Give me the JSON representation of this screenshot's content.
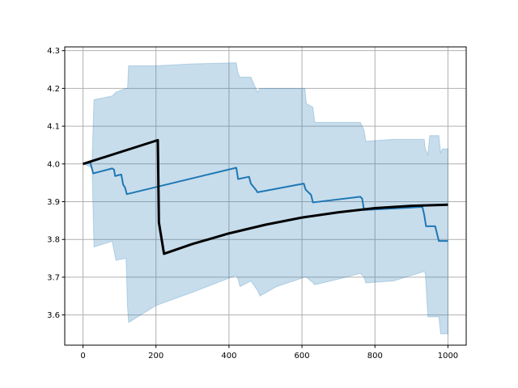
{
  "chart_data": {
    "type": "line",
    "title": "",
    "xlabel": "",
    "ylabel": "",
    "xlim": [
      -50,
      1050
    ],
    "ylim": [
      3.52,
      4.31
    ],
    "grid": true,
    "xticks": [
      0,
      200,
      400,
      600,
      800,
      1000
    ],
    "yticks": [
      3.6,
      3.7,
      3.8,
      3.9,
      4.0,
      4.1,
      4.2,
      4.3
    ],
    "colors": {
      "band": "#1f77b4",
      "mean": "#1f77b4",
      "reference": "#000000",
      "grid": "#b0b0b0"
    },
    "series": [
      {
        "kind": "band",
        "upper": [
          [
            0,
            4.0
          ],
          [
            25,
            4.01
          ],
          [
            30,
            4.17
          ],
          [
            80,
            4.18
          ],
          [
            90,
            4.19
          ],
          [
            118,
            4.2
          ],
          [
            122,
            4.2
          ],
          [
            125,
            4.26
          ],
          [
            200,
            4.26
          ],
          [
            300,
            4.265
          ],
          [
            420,
            4.268
          ],
          [
            425,
            4.24
          ],
          [
            430,
            4.23
          ],
          [
            460,
            4.23
          ],
          [
            478,
            4.19
          ],
          [
            485,
            4.2
          ],
          [
            530,
            4.2
          ],
          [
            608,
            4.2
          ],
          [
            612,
            4.16
          ],
          [
            630,
            4.15
          ],
          [
            635,
            4.11
          ],
          [
            700,
            4.11
          ],
          [
            760,
            4.11
          ],
          [
            770,
            4.09
          ],
          [
            775,
            4.06
          ],
          [
            850,
            4.065
          ],
          [
            935,
            4.065
          ],
          [
            938,
            4.04
          ],
          [
            945,
            4.025
          ],
          [
            950,
            4.075
          ],
          [
            975,
            4.075
          ],
          [
            980,
            4.03
          ],
          [
            985,
            4.04
          ],
          [
            1000,
            4.04
          ]
        ],
        "lower": [
          [
            0,
            4.0
          ],
          [
            25,
            3.99
          ],
          [
            30,
            3.78
          ],
          [
            80,
            3.795
          ],
          [
            90,
            3.745
          ],
          [
            118,
            3.75
          ],
          [
            122,
            3.62
          ],
          [
            125,
            3.58
          ],
          [
            200,
            3.625
          ],
          [
            300,
            3.66
          ],
          [
            420,
            3.705
          ],
          [
            425,
            3.695
          ],
          [
            430,
            3.675
          ],
          [
            460,
            3.69
          ],
          [
            478,
            3.665
          ],
          [
            485,
            3.65
          ],
          [
            530,
            3.675
          ],
          [
            608,
            3.7
          ],
          [
            612,
            3.7
          ],
          [
            630,
            3.685
          ],
          [
            635,
            3.68
          ],
          [
            700,
            3.695
          ],
          [
            760,
            3.71
          ],
          [
            770,
            3.7
          ],
          [
            775,
            3.685
          ],
          [
            850,
            3.69
          ],
          [
            935,
            3.715
          ],
          [
            938,
            3.71
          ],
          [
            945,
            3.595
          ],
          [
            950,
            3.595
          ],
          [
            975,
            3.595
          ],
          [
            980,
            3.55
          ],
          [
            985,
            3.55
          ],
          [
            1000,
            3.55
          ]
        ]
      },
      {
        "kind": "line",
        "points": [
          [
            0,
            4.0
          ],
          [
            20,
            4.004
          ],
          [
            28,
            3.975
          ],
          [
            80,
            3.988
          ],
          [
            85,
            3.985
          ],
          [
            88,
            3.968
          ],
          [
            105,
            3.972
          ],
          [
            110,
            3.945
          ],
          [
            115,
            3.938
          ],
          [
            120,
            3.92
          ],
          [
            420,
            3.99
          ],
          [
            425,
            3.96
          ],
          [
            455,
            3.966
          ],
          [
            460,
            3.948
          ],
          [
            475,
            3.93
          ],
          [
            478,
            3.925
          ],
          [
            605,
            3.948
          ],
          [
            610,
            3.932
          ],
          [
            625,
            3.918
          ],
          [
            630,
            3.898
          ],
          [
            760,
            3.913
          ],
          [
            765,
            3.908
          ],
          [
            770,
            3.878
          ],
          [
            930,
            3.886
          ],
          [
            935,
            3.865
          ],
          [
            940,
            3.835
          ],
          [
            965,
            3.835
          ],
          [
            975,
            3.796
          ],
          [
            1000,
            3.796
          ]
        ]
      },
      {
        "kind": "line",
        "points": [
          [
            0,
            4.0
          ],
          [
            205,
            4.063
          ],
          [
            208,
            3.845
          ],
          [
            222,
            3.762
          ],
          [
            300,
            3.788
          ],
          [
            400,
            3.816
          ],
          [
            500,
            3.839
          ],
          [
            600,
            3.858
          ],
          [
            700,
            3.872
          ],
          [
            800,
            3.883
          ],
          [
            900,
            3.889
          ],
          [
            1000,
            3.892
          ]
        ]
      }
    ]
  }
}
